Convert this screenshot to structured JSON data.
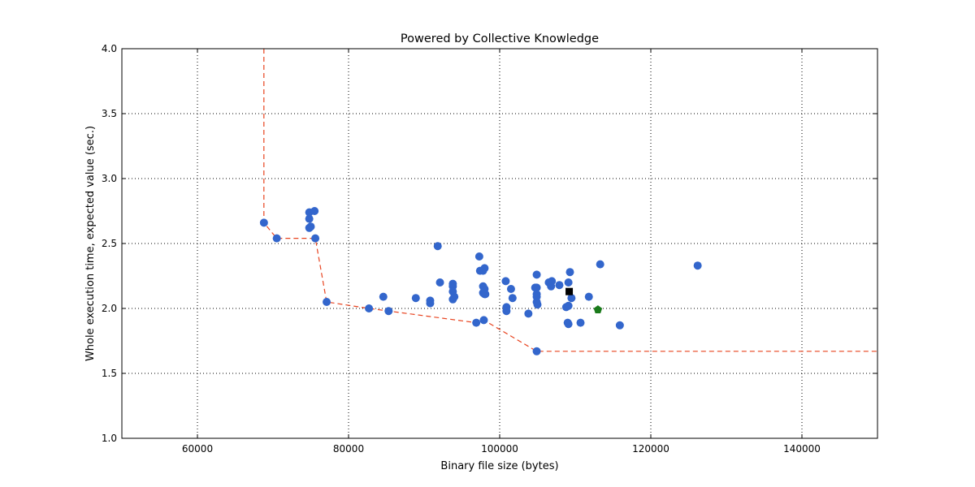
{
  "chart_data": {
    "type": "scatter",
    "title": "Powered by Collective Knowledge",
    "xlabel": "Binary file size (bytes)",
    "ylabel": "Whole execution time, expected value (sec.)",
    "xlim": [
      50000,
      150000
    ],
    "ylim": [
      1.0,
      4.0
    ],
    "xticks": [
      60000,
      80000,
      100000,
      120000,
      140000
    ],
    "yticks": [
      1.0,
      1.5,
      2.0,
      2.5,
      3.0,
      3.5,
      4.0
    ],
    "ytick_labels": [
      "1.0",
      "1.5",
      "2.0",
      "2.5",
      "3.0",
      "3.5",
      "4.0"
    ],
    "grid": true,
    "colors": {
      "points": "#3366cc",
      "frontier": "#e8431f",
      "reference": "#000000",
      "best": "#1a7a1a",
      "grid": "#000000"
    },
    "series": [
      {
        "marker": "circle",
        "points": [
          [
            68800,
            2.66
          ],
          [
            70500,
            2.54
          ],
          [
            74800,
            2.74
          ],
          [
            75500,
            2.75
          ],
          [
            74800,
            2.69
          ],
          [
            74800,
            2.62
          ],
          [
            75000,
            2.63
          ],
          [
            75600,
            2.54
          ],
          [
            77100,
            2.05
          ],
          [
            82700,
            2.0
          ],
          [
            84600,
            2.09
          ],
          [
            85300,
            1.98
          ],
          [
            88900,
            2.08
          ],
          [
            90800,
            2.06
          ],
          [
            90800,
            2.04
          ],
          [
            91800,
            2.48
          ],
          [
            92100,
            2.2
          ],
          [
            93800,
            2.19
          ],
          [
            93800,
            2.17
          ],
          [
            93800,
            2.13
          ],
          [
            93800,
            2.07
          ],
          [
            94000,
            2.09
          ],
          [
            96900,
            1.89
          ],
          [
            97300,
            2.4
          ],
          [
            97400,
            2.29
          ],
          [
            97800,
            2.29
          ],
          [
            97800,
            2.17
          ],
          [
            97800,
            2.12
          ],
          [
            98000,
            2.15
          ],
          [
            98000,
            2.11
          ],
          [
            98000,
            2.31
          ],
          [
            98100,
            2.11
          ],
          [
            97900,
            1.91
          ],
          [
            100800,
            2.21
          ],
          [
            100900,
            2.01
          ],
          [
            100900,
            1.98
          ],
          [
            101500,
            2.15
          ],
          [
            101700,
            2.08
          ],
          [
            103800,
            1.96
          ],
          [
            104700,
            2.16
          ],
          [
            104900,
            2.26
          ],
          [
            104900,
            2.16
          ],
          [
            104900,
            2.11
          ],
          [
            104900,
            2.09
          ],
          [
            104900,
            2.05
          ],
          [
            105000,
            2.03
          ],
          [
            104900,
            1.67
          ],
          [
            106500,
            2.2
          ],
          [
            106900,
            2.21
          ],
          [
            106800,
            2.17
          ],
          [
            107900,
            2.18
          ],
          [
            108800,
            2.01
          ],
          [
            109100,
            2.02
          ],
          [
            109000,
            1.89
          ],
          [
            109100,
            1.88
          ],
          [
            109100,
            2.2
          ],
          [
            109300,
            2.28
          ],
          [
            109500,
            2.08
          ],
          [
            110700,
            1.89
          ],
          [
            111800,
            2.09
          ],
          [
            113300,
            2.34
          ],
          [
            115900,
            1.87
          ],
          [
            126200,
            2.33
          ]
        ]
      },
      {
        "marker": "square",
        "points": [
          [
            109200,
            2.13
          ]
        ]
      },
      {
        "marker": "pentagon",
        "points": [
          [
            113000,
            1.99
          ]
        ]
      },
      {
        "type": "line",
        "style": "dashed",
        "points": [
          [
            68800,
            4.0
          ],
          [
            68800,
            2.66
          ],
          [
            70500,
            2.54
          ],
          [
            75600,
            2.54
          ],
          [
            77100,
            2.05
          ],
          [
            82700,
            2.0
          ],
          [
            85300,
            1.98
          ],
          [
            96900,
            1.89
          ],
          [
            97900,
            1.91
          ],
          [
            104900,
            1.67
          ],
          [
            150000,
            1.67
          ]
        ]
      }
    ]
  }
}
